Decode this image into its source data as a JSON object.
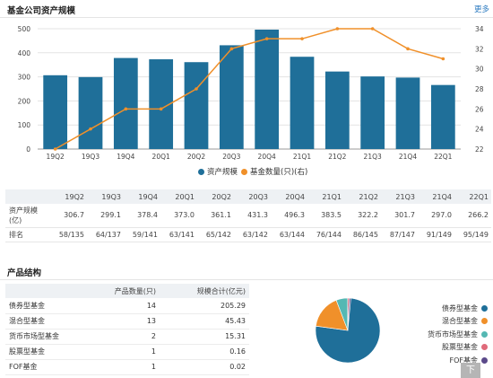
{
  "asset_section": {
    "title": "基金公司资产规模",
    "more_label": "更多"
  },
  "chart_data": {
    "type": "bar",
    "categories": [
      "19Q2",
      "19Q3",
      "19Q4",
      "20Q1",
      "20Q2",
      "20Q3",
      "20Q4",
      "21Q1",
      "21Q2",
      "21Q3",
      "21Q4",
      "22Q1"
    ],
    "series": [
      {
        "name": "资产规模",
        "type": "bar",
        "axis": "left",
        "color": "#1f6f99",
        "values": [
          306.7,
          299.1,
          378.4,
          373.0,
          361.1,
          431.3,
          496.3,
          383.5,
          322.2,
          301.7,
          297.0,
          266.2
        ]
      },
      {
        "name": "基金数量(只)(右)",
        "type": "line",
        "axis": "right",
        "color": "#f0902a",
        "values": [
          22,
          24,
          26,
          26,
          28,
          32,
          33,
          33,
          34,
          34,
          32,
          31
        ]
      }
    ],
    "y_left": {
      "min": 0,
      "max": 500,
      "ticks": [
        0,
        100,
        200,
        300,
        400,
        500
      ]
    },
    "y_right": {
      "min": 22,
      "max": 34,
      "ticks": [
        22,
        24,
        26,
        28,
        30,
        32,
        34
      ]
    },
    "grid": true,
    "legend_position": "bottom"
  },
  "stats_table": {
    "headers": [
      "19Q2",
      "19Q3",
      "19Q4",
      "20Q1",
      "20Q2",
      "20Q3",
      "20Q4",
      "21Q1",
      "21Q2",
      "21Q3",
      "21Q4",
      "22Q1"
    ],
    "rows": [
      {
        "label": "资产规模(亿)",
        "values": [
          "306.7",
          "299.1",
          "378.4",
          "373.0",
          "361.1",
          "431.3",
          "496.3",
          "383.5",
          "322.2",
          "301.7",
          "297.0",
          "266.2"
        ]
      },
      {
        "label": "排名",
        "values": [
          "58/135",
          "64/137",
          "59/141",
          "63/141",
          "65/142",
          "63/142",
          "63/144",
          "76/144",
          "86/145",
          "87/147",
          "91/149",
          "95/149"
        ]
      }
    ]
  },
  "product_section": {
    "title": "产品结构",
    "col_count": "产品数量(只)",
    "col_scale": "规模合计(亿元)",
    "rows": [
      {
        "name": "债券型基金",
        "count": "14",
        "scale": "205.29"
      },
      {
        "name": "混合型基金",
        "count": "13",
        "scale": "45.43"
      },
      {
        "name": "货币市场型基金",
        "count": "2",
        "scale": "15.31"
      },
      {
        "name": "股票型基金",
        "count": "1",
        "scale": "0.16"
      },
      {
        "name": "FOF基金",
        "count": "1",
        "scale": "0.02"
      }
    ],
    "down_label": "下"
  },
  "pie_data": {
    "type": "pie",
    "labels": [
      "债券型基金",
      "混合型基金",
      "货币市场型基金",
      "股票型基金",
      "FOF基金"
    ],
    "values": [
      205.29,
      45.43,
      15.31,
      0.16,
      0.02
    ],
    "colors": [
      "#1f6f99",
      "#f0902a",
      "#55b8b3",
      "#e06a7a",
      "#5b4a8a"
    ]
  }
}
